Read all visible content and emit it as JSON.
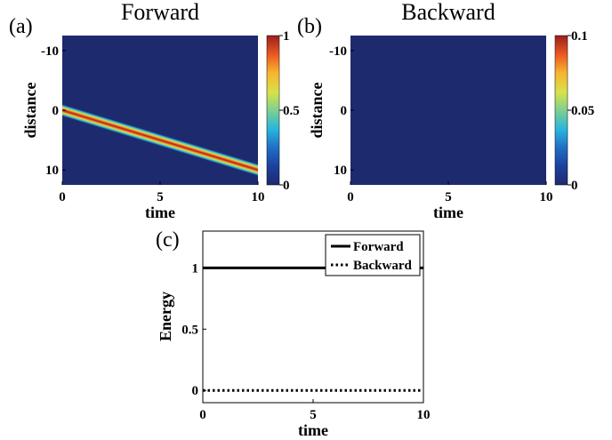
{
  "chart_data": [
    {
      "type": "heatmap",
      "panel_label": "(a)",
      "title": "Forward",
      "xlabel": "time",
      "ylabel": "distance",
      "xlim": [
        0,
        10
      ],
      "ylim": [
        -12.5,
        12.5
      ],
      "y_inverted": true,
      "xticks": [
        0,
        5,
        10
      ],
      "yticks": [
        -10,
        0,
        10
      ],
      "colorbar": {
        "min": 0,
        "max": 1,
        "ticks": [
          0,
          0.5,
          1
        ]
      },
      "pulse": {
        "start_distance": 0,
        "end_distance": 10,
        "start_time": 0,
        "end_time": 10,
        "peak": 1,
        "width": 0.5
      },
      "background_value": 0
    },
    {
      "type": "heatmap",
      "panel_label": "(b)",
      "title": "Backward",
      "xlabel": "time",
      "ylabel": "distance",
      "xlim": [
        0,
        10
      ],
      "ylim": [
        -12.5,
        12.5
      ],
      "y_inverted": true,
      "xticks": [
        0,
        5,
        10
      ],
      "yticks": [
        -10,
        0,
        10
      ],
      "colorbar": {
        "min": 0,
        "max": 0.1,
        "ticks": [
          0,
          0.05,
          0.1
        ]
      },
      "background_value": 0
    },
    {
      "type": "line",
      "panel_label": "(c)",
      "title": "",
      "xlabel": "time",
      "ylabel": "Energy",
      "xlim": [
        0,
        10
      ],
      "ylim": [
        -0.1,
        1.3
      ],
      "xticks": [
        0,
        5,
        10
      ],
      "yticks": [
        0,
        0.5,
        1
      ],
      "legend_position": "top-right",
      "series": [
        {
          "name": "Forward",
          "x": [
            0,
            10
          ],
          "y": [
            1,
            1
          ],
          "style": "solid"
        },
        {
          "name": "Backward",
          "x": [
            0,
            10
          ],
          "y": [
            0,
            0
          ],
          "style": "dotted"
        }
      ]
    }
  ],
  "colors": {
    "jet_low": "#1e2a6e",
    "text": "#000000"
  }
}
